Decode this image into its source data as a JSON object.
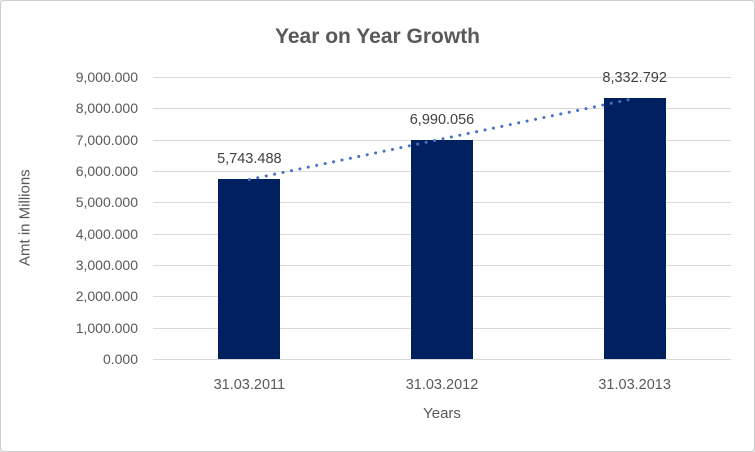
{
  "chart_data": {
    "type": "bar",
    "title": "Year on Year Growth",
    "xlabel": "Years",
    "ylabel": "Amt in Millions",
    "categories": [
      "31.03.2011",
      "31.03.2012",
      "31.03.2013"
    ],
    "values": [
      5743.488,
      6990.056,
      8332.792
    ],
    "data_labels": [
      "5,743.488",
      "6,990.056",
      "8,332.792"
    ],
    "ylim": [
      0,
      9000
    ],
    "ytick_values": [
      0,
      1000,
      2000,
      3000,
      4000,
      5000,
      6000,
      7000,
      8000,
      9000
    ],
    "ytick_labels": [
      "0.000",
      "1,000.000",
      "2,000.000",
      "3,000.000",
      "4,000.000",
      "5,000.000",
      "6,000.000",
      "7,000.000",
      "8,000.000",
      "9,000.000"
    ],
    "grid": true,
    "legend": "none",
    "trendline": {
      "type": "linear",
      "style": "dotted"
    },
    "colors": {
      "bar": "#002060",
      "trendline": "#4472C4",
      "gridline": "#D9D9D9",
      "text": "#595959",
      "data_label_text": "#404040",
      "background": "#FFFFFF",
      "border": "#CFCFCF"
    }
  }
}
